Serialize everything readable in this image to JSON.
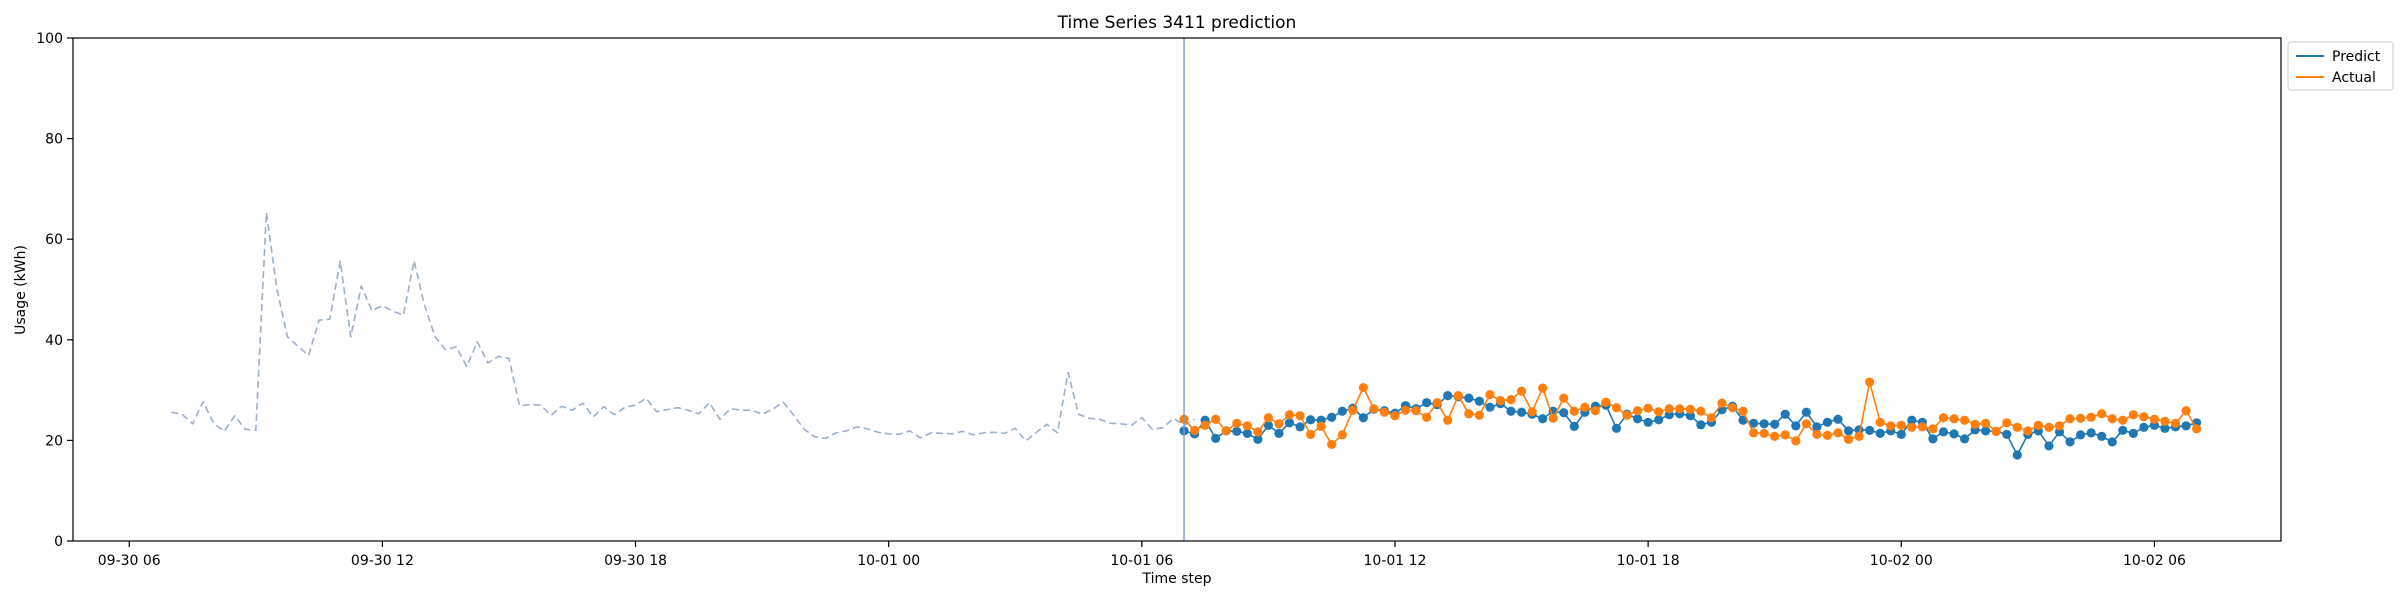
{
  "chart_data": {
    "type": "line",
    "title": "Time Series 3411 prediction",
    "xlabel": "Time step",
    "ylabel": "Usage (kWh)",
    "ylim": [
      0,
      100
    ],
    "xlim": [
      "2023-09-30T04:40",
      "2023-10-02T09:00"
    ],
    "x_ticks": [
      {
        "label": "09-30 06",
        "value": "2023-09-30T06:00"
      },
      {
        "label": "09-30 12",
        "value": "2023-09-30T12:00"
      },
      {
        "label": "09-30 18",
        "value": "2023-09-30T18:00"
      },
      {
        "label": "10-01 00",
        "value": "2023-10-01T00:00"
      },
      {
        "label": "10-01 06",
        "value": "2023-10-01T06:00"
      },
      {
        "label": "10-01 12",
        "value": "2023-10-01T12:00"
      },
      {
        "label": "10-01 18",
        "value": "2023-10-01T18:00"
      },
      {
        "label": "10-02 00",
        "value": "2023-10-02T00:00"
      },
      {
        "label": "10-02 06",
        "value": "2023-10-02T06:00"
      }
    ],
    "y_ticks": [
      0,
      20,
      40,
      60,
      80,
      100
    ],
    "grid": false,
    "legend": {
      "position": "outside-top-right",
      "entries": [
        "Predict",
        "Actual"
      ]
    },
    "split_marker": {
      "x": "2023-10-01T07:00",
      "style": "vertical-line"
    },
    "series": [
      {
        "name": "",
        "style": "dashed",
        "color": "#9ab0cc",
        "x_start": "2023-09-30T07:00",
        "interval_minutes": 15,
        "values": [
          25.6,
          25.2,
          23.3,
          27.7,
          23.4,
          21.8,
          24.9,
          22.2,
          22.0,
          65.3,
          50.1,
          40.6,
          38.7,
          36.9,
          43.9,
          44.1,
          55.6,
          40.6,
          50.7,
          45.8,
          46.8,
          45.7,
          44.9,
          55.7,
          46.8,
          40.6,
          38.0,
          38.6,
          34.7,
          39.6,
          35.4,
          36.7,
          36.3,
          26.9,
          27.1,
          27.0,
          25.0,
          26.8,
          26.0,
          27.4,
          24.7,
          26.7,
          25.1,
          26.6,
          27.0,
          28.4,
          25.7,
          26.1,
          26.5,
          26.0,
          25.3,
          27.5,
          24.2,
          26.3,
          26.0,
          26.0,
          25.2,
          26.2,
          27.6,
          25.0,
          22.2,
          20.7,
          20.4,
          21.5,
          21.9,
          22.7,
          22.3,
          21.6,
          21.3,
          21.2,
          21.9,
          20.5,
          21.5,
          21.4,
          21.3,
          21.8,
          21.1,
          21.5,
          21.6,
          21.4,
          22.4,
          19.9,
          21.6,
          23.2,
          21.5,
          33.5,
          25.2,
          24.4,
          24.2,
          23.4,
          23.3,
          23.0,
          24.5,
          22.2,
          22.5,
          24.4,
          23.0,
          24.2
        ]
      },
      {
        "name": "Predict",
        "style": "solid-markers",
        "color": "#1f77b4",
        "x_start": "2023-10-01T07:00",
        "interval_minutes": 15,
        "values": [
          21.9,
          21.3,
          24.0,
          20.4,
          21.9,
          21.8,
          21.4,
          20.2,
          23.0,
          21.4,
          23.5,
          22.7,
          24.1,
          24.0,
          24.6,
          25.8,
          26.4,
          24.5,
          26.2,
          25.9,
          25.4,
          26.9,
          26.3,
          27.5,
          27.1,
          28.9,
          28.7,
          28.4,
          27.8,
          26.6,
          27.3,
          25.8,
          25.6,
          25.2,
          24.3,
          25.8,
          25.5,
          22.8,
          25.6,
          26.8,
          27.0,
          22.4,
          25.2,
          24.3,
          23.6,
          24.1,
          25.1,
          25.3,
          24.9,
          23.1,
          23.6,
          26.1,
          26.8,
          24.0,
          23.4,
          23.3,
          23.2,
          25.2,
          22.9,
          25.6,
          22.7,
          23.6,
          24.2,
          21.9,
          22.1,
          22.0,
          21.4,
          21.9,
          21.2,
          24.0,
          23.6,
          20.3,
          21.7,
          21.3,
          20.3,
          22.1,
          21.9,
          21.8,
          21.2,
          17.1,
          21.2,
          21.9,
          18.9,
          21.7,
          19.7,
          21.1,
          21.5,
          20.8,
          19.7,
          22.0,
          21.4,
          22.6,
          23.0,
          22.4,
          22.7,
          22.9,
          23.5
        ]
      },
      {
        "name": "Actual",
        "style": "solid-markers",
        "color": "#ff7f0e",
        "x_start": "2023-10-01T07:00",
        "interval_minutes": 15,
        "values": [
          24.2,
          22.0,
          23.0,
          24.2,
          21.9,
          23.4,
          22.9,
          21.7,
          24.5,
          23.3,
          25.1,
          24.9,
          21.2,
          22.8,
          19.2,
          21.1,
          26.0,
          30.5,
          26.3,
          25.6,
          24.9,
          26.0,
          25.9,
          24.6,
          27.5,
          24.0,
          28.9,
          25.3,
          25.0,
          29.1,
          27.9,
          28.1,
          29.8,
          25.7,
          30.4,
          24.4,
          28.4,
          25.8,
          26.6,
          25.9,
          27.6,
          26.5,
          25.0,
          25.9,
          26.4,
          25.7,
          26.3,
          26.3,
          26.2,
          25.8,
          24.5,
          27.4,
          26.5,
          25.8,
          21.5,
          21.4,
          20.8,
          21.1,
          19.9,
          23.3,
          21.2,
          21.0,
          21.5,
          20.2,
          20.8,
          31.6,
          23.6,
          22.9,
          23.0,
          22.6,
          22.7,
          22.3,
          24.5,
          24.3,
          24.0,
          23.2,
          23.4,
          21.8,
          23.5,
          22.6,
          21.9,
          23.0,
          22.6,
          22.9,
          24.3,
          24.4,
          24.6,
          25.3,
          24.3,
          24.0,
          25.1,
          24.7,
          24.2,
          23.8,
          23.4,
          25.9,
          22.3
        ]
      }
    ]
  }
}
